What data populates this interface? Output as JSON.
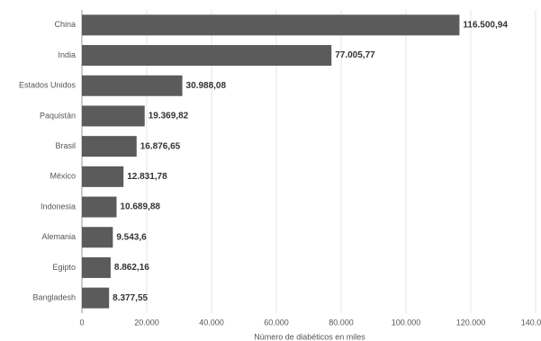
{
  "chart_data": {
    "type": "bar",
    "orientation": "horizontal",
    "x_label": "Número de diabéticos en miles",
    "categories": [
      "China",
      "India",
      "Estados Unidos",
      "Paquistán",
      "Brasil",
      "México",
      "Indonesia",
      "Alemania",
      "Egipto",
      "Bangladesh"
    ],
    "values": [
      116500.94,
      77005.77,
      30988.08,
      19369.82,
      16876.65,
      12831.78,
      10689.88,
      9543.6,
      8862.16,
      8377.55
    ],
    "value_labels": [
      "116.500,94",
      "77.005,77",
      "30.988,08",
      "19.369,82",
      "16.876,65",
      "12.831,78",
      "10.689,88",
      "9.543,6",
      "8.862,16",
      "8.377,55"
    ],
    "color": "#5b5b5b",
    "xlim": [
      0,
      140000
    ],
    "xticks": [
      0,
      {
        "value": 20000,
        "label": "20.000"
      },
      {
        "value": 40000,
        "label": "40.000"
      },
      {
        "value": 60000,
        "label": "60.000"
      },
      {
        "value": 80000,
        "label": "80.000"
      },
      {
        "value": 100000,
        "label": "100.000"
      },
      {
        "value": 120000,
        "label": "120.000"
      },
      {
        "value": 140000,
        "label": "140.000"
      }
    ],
    "grid": true
  }
}
